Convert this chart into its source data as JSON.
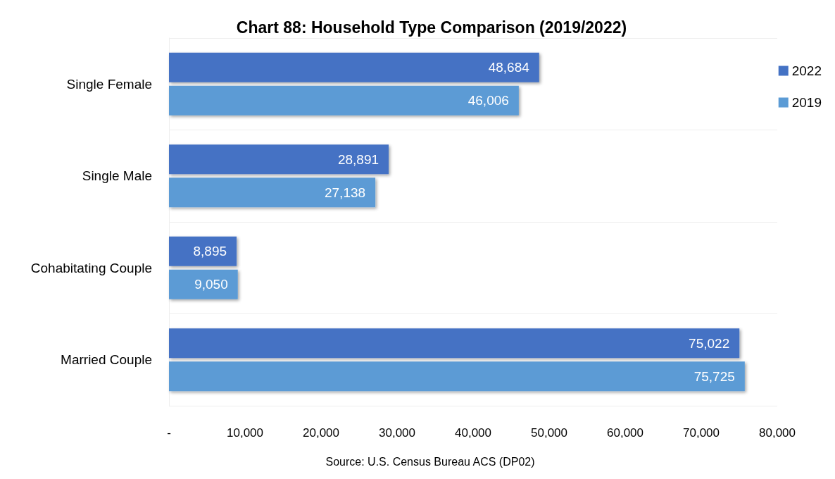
{
  "chart_data": {
    "type": "bar",
    "orientation": "horizontal",
    "title": "Chart 88: Household Type Comparison (2019/2022)",
    "categories": [
      "Single Female",
      "Single Male",
      "Cohabitating Couple",
      "Married Couple"
    ],
    "series": [
      {
        "name": "2022",
        "color": "#4472c4",
        "values": [
          48684,
          28891,
          8895,
          75022
        ],
        "value_labels": [
          "48,684",
          "28,891",
          "8,895",
          "75,022"
        ]
      },
      {
        "name": "2019",
        "color": "#5b9bd5",
        "values": [
          46006,
          27138,
          9050,
          75725
        ],
        "value_labels": [
          "46,006",
          "27,138",
          "9,050",
          "75,725"
        ]
      }
    ],
    "xlim": [
      0,
      80000
    ],
    "xticks": [
      {
        "value": 0,
        "label": "-"
      },
      {
        "value": 10000,
        "label": "10,000"
      },
      {
        "value": 20000,
        "label": "20,000"
      },
      {
        "value": 30000,
        "label": "30,000"
      },
      {
        "value": 40000,
        "label": "40,000"
      },
      {
        "value": 50000,
        "label": "50,000"
      },
      {
        "value": 60000,
        "label": "60,000"
      },
      {
        "value": 70000,
        "label": "70,000"
      },
      {
        "value": 80000,
        "label": "80,000"
      }
    ],
    "grid": "y",
    "legend": "top right",
    "annotations": [
      "Source: U.S. Census Bureau ACS (DP02)"
    ]
  }
}
